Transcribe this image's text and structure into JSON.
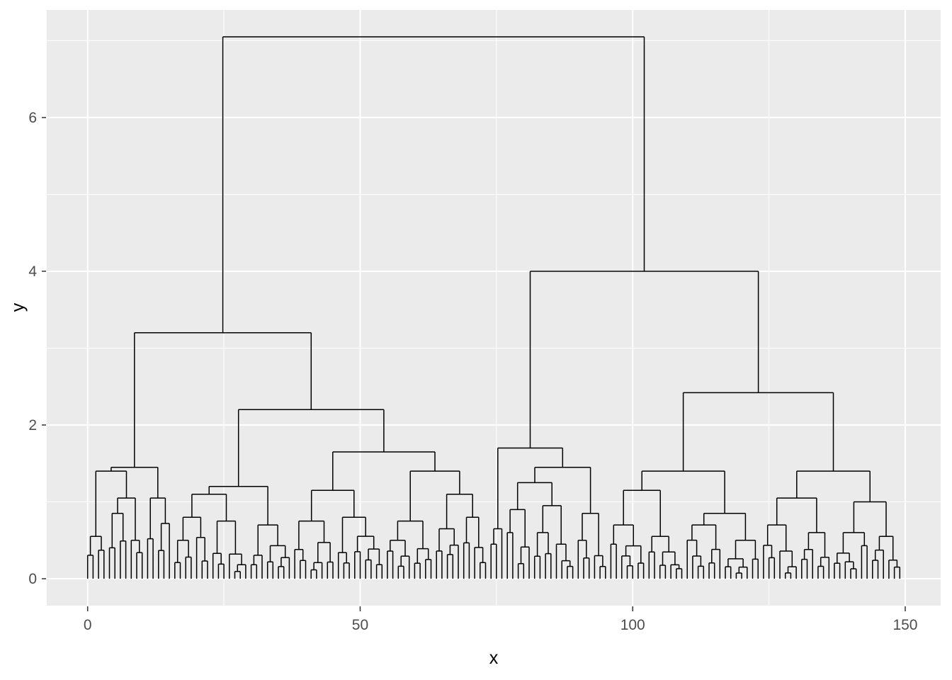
{
  "figure": {
    "background": "#FFFFFF"
  },
  "chart_data": {
    "type": "dendrogram",
    "title": "",
    "xlabel": "x",
    "ylabel": "y",
    "x_ticks": [
      0,
      50,
      100,
      150
    ],
    "y_ticks": [
      0,
      2,
      4,
      6
    ],
    "x_minor_ticks": [
      25,
      75,
      125
    ],
    "y_minor_ticks": [
      1,
      3,
      5,
      7
    ],
    "xlim": [
      -7.5,
      156.5
    ],
    "ylim": [
      -0.35,
      7.4
    ],
    "n_leaves": 150,
    "root_height": 7.05,
    "panel_background": "#EBEBEB",
    "grid_color": "#FFFFFF",
    "line_color": "#000000",
    "tick_mark_color": "#333333",
    "tick_label_color": "#4D4D4D",
    "axis_title_color": "#000000",
    "tree": {
      "h": 7.05,
      "children": [
        {
          "h": 3.2,
          "children": [
            {
              "h": 1.45,
              "children": [
                {
                  "h": 1.4,
                  "children": [
                    {
                      "n": 4,
                      "h": 0.55
                    },
                    {
                      "h": 1.05,
                      "children": [
                        {
                          "n": 4,
                          "h": 0.85
                        },
                        {
                          "n": 3,
                          "h": 0.5
                        }
                      ]
                    }
                  ]
                },
                {
                  "n": 5,
                  "h": 1.05
                }
              ]
            },
            {
              "h": 2.2,
              "children": [
                {
                  "h": 1.2,
                  "children": [
                    {
                      "h": 1.1,
                      "children": [
                        {
                          "n": 7,
                          "h": 0.8
                        },
                        {
                          "n": 7,
                          "h": 0.75
                        }
                      ]
                    },
                    {
                      "n": 8,
                      "h": 0.7
                    }
                  ]
                },
                {
                  "h": 1.65,
                  "children": [
                    {
                      "h": 1.15,
                      "children": [
                        {
                          "n": 8,
                          "h": 0.75
                        },
                        {
                          "n": 9,
                          "h": 0.8
                        }
                      ]
                    },
                    {
                      "h": 1.4,
                      "children": [
                        {
                          "n": 9,
                          "h": 0.75
                        },
                        {
                          "h": 1.1,
                          "children": [
                            {
                              "n": 5,
                              "h": 0.65
                            },
                            {
                              "n": 5,
                              "h": 0.8
                            }
                          ]
                        }
                      ]
                    }
                  ]
                }
              ]
            }
          ]
        },
        {
          "h": 4.0,
          "children": [
            {
              "h": 1.7,
              "children": [
                {
                  "n": 3,
                  "h": 0.65
                },
                {
                  "h": 1.45,
                  "children": [
                    {
                      "h": 1.25,
                      "children": [
                        {
                          "n": 5,
                          "h": 0.9
                        },
                        {
                          "h": 0.95,
                          "children": [
                            {
                              "n": 4,
                              "h": 0.6
                            },
                            {
                              "n": 4,
                              "h": 0.45
                            }
                          ]
                        }
                      ]
                    },
                    {
                      "h": 0.85,
                      "children": [
                        {
                          "n": 3,
                          "h": 0.5
                        },
                        {
                          "n": 3,
                          "h": 0.3
                        }
                      ]
                    }
                  ]
                }
              ]
            },
            {
              "h": 2.42,
              "children": [
                {
                  "h": 1.4,
                  "children": [
                    {
                      "h": 1.15,
                      "children": [
                        {
                          "n": 7,
                          "h": 0.7
                        },
                        {
                          "n": 7,
                          "h": 0.55
                        }
                      ]
                    },
                    {
                      "h": 0.85,
                      "children": [
                        {
                          "n": 7,
                          "h": 0.7
                        },
                        {
                          "n": 7,
                          "h": 0.5
                        }
                      ]
                    }
                  ]
                },
                {
                  "h": 1.4,
                  "children": [
                    {
                      "h": 1.05,
                      "children": [
                        {
                          "n": 7,
                          "h": 0.7
                        },
                        {
                          "n": 6,
                          "h": 0.6
                        }
                      ]
                    },
                    {
                      "h": 1.0,
                      "children": [
                        {
                          "n": 7,
                          "h": 0.6
                        },
                        {
                          "n": 6,
                          "h": 0.55
                        }
                      ]
                    }
                  ]
                }
              ]
            }
          ]
        }
      ]
    }
  }
}
